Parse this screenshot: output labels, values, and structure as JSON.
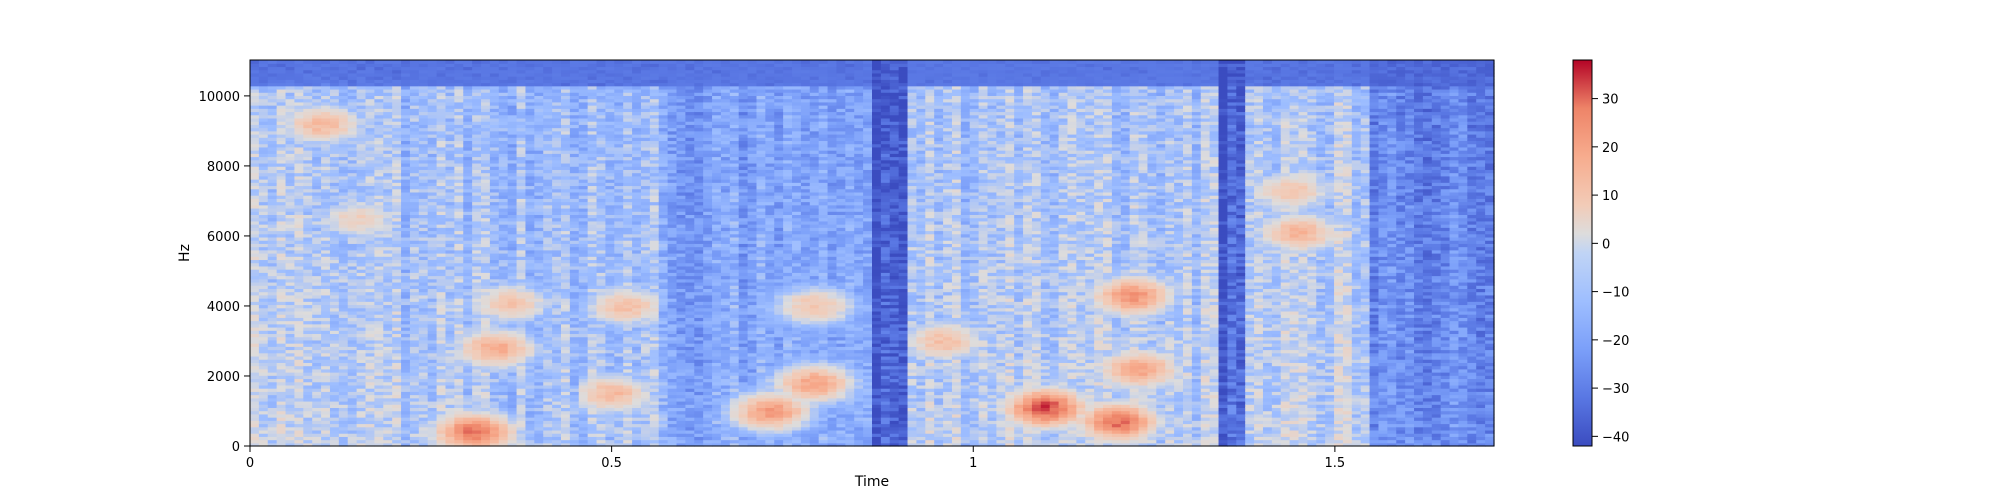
{
  "chart_data": {
    "type": "heatmap",
    "title": "",
    "xlabel": "Time",
    "ylabel": "Hz",
    "xlim": [
      0,
      1.72
    ],
    "ylim": [
      0,
      11025
    ],
    "x_ticks": [
      0,
      0.5,
      1,
      1.5
    ],
    "x_tick_labels": [
      "0",
      "0.5",
      "1",
      "1.5"
    ],
    "y_ticks": [
      0,
      2000,
      4000,
      6000,
      8000,
      10000
    ],
    "y_tick_labels": [
      "0",
      "2000",
      "4000",
      "6000",
      "8000",
      "10000"
    ],
    "colorbar": {
      "colormap": "coolwarm",
      "range": [
        -42,
        38
      ],
      "ticks": [
        -40,
        -30,
        -20,
        -10,
        0,
        10,
        20,
        30
      ],
      "tick_labels": [
        "−40",
        "−30",
        "−20",
        "−10",
        "0",
        "10",
        "20",
        "30"
      ]
    },
    "segments": [
      {
        "t0": 0.0,
        "t1": 0.21,
        "level": -8,
        "hotspots": [
          {
            "t": 0.1,
            "f": 9200,
            "level": 14
          },
          {
            "t": 0.15,
            "f": 6500,
            "level": 6
          }
        ]
      },
      {
        "t0": 0.21,
        "t1": 0.46,
        "level": -14,
        "hotspots": [
          {
            "t": 0.31,
            "f": 400,
            "level": 30
          },
          {
            "t": 0.34,
            "f": 2800,
            "level": 18
          },
          {
            "t": 0.36,
            "f": 4100,
            "level": 10
          }
        ]
      },
      {
        "t0": 0.46,
        "t1": 0.56,
        "level": -12,
        "hotspots": [
          {
            "t": 0.5,
            "f": 1500,
            "level": 14
          },
          {
            "t": 0.52,
            "f": 4000,
            "level": 12
          }
        ]
      },
      {
        "t0": 0.56,
        "t1": 0.86,
        "level": -22,
        "hotspots": [
          {
            "t": 0.72,
            "f": 1000,
            "level": 22
          },
          {
            "t": 0.78,
            "f": 1800,
            "level": 20
          },
          {
            "t": 0.78,
            "f": 4000,
            "level": 10
          }
        ]
      },
      {
        "t0": 0.86,
        "t1": 0.91,
        "level": -42,
        "hotspots": []
      },
      {
        "t0": 0.91,
        "t1": 1.34,
        "level": -12,
        "hotspots": [
          {
            "t": 0.96,
            "f": 3000,
            "level": 12
          },
          {
            "t": 1.1,
            "f": 1100,
            "level": 34
          },
          {
            "t": 1.22,
            "f": 4300,
            "level": 24
          },
          {
            "t": 1.23,
            "f": 2200,
            "level": 20
          },
          {
            "t": 1.2,
            "f": 700,
            "level": 30
          }
        ]
      },
      {
        "t0": 1.34,
        "t1": 1.38,
        "level": -40,
        "hotspots": []
      },
      {
        "t0": 1.38,
        "t1": 1.55,
        "level": -10,
        "hotspots": [
          {
            "t": 1.45,
            "f": 6100,
            "level": 16
          },
          {
            "t": 1.44,
            "f": 7300,
            "level": 10
          }
        ]
      },
      {
        "t0": 1.55,
        "t1": 1.72,
        "level": -28,
        "hotspots": []
      }
    ]
  }
}
